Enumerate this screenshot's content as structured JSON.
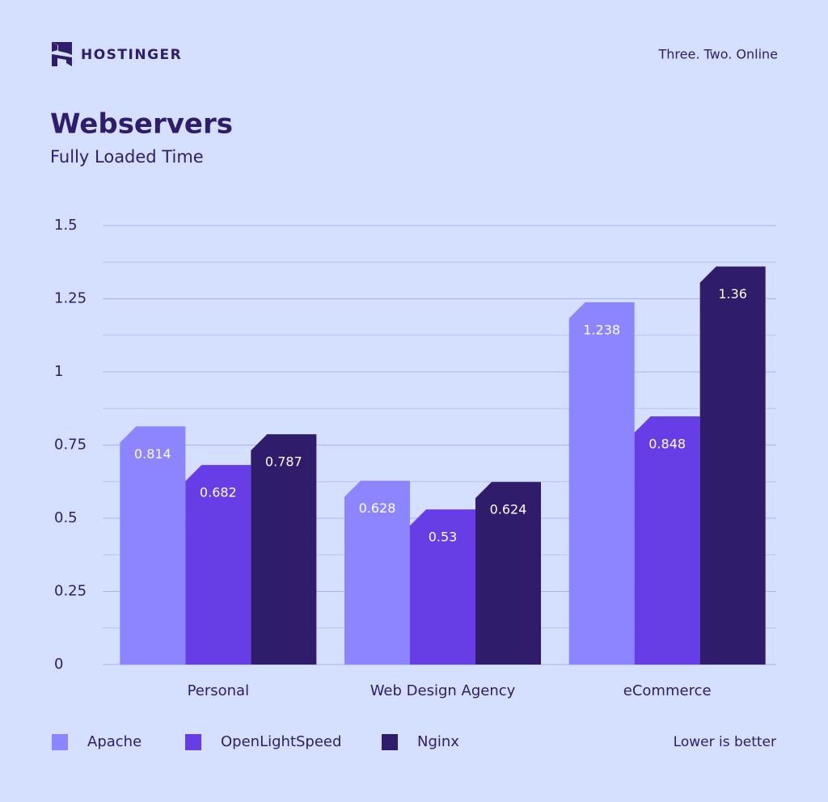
{
  "brand": "HOSTINGER",
  "tagline": "Three. Two. Online",
  "note": "Lower is better",
  "chart_data": {
    "type": "bar",
    "title": "Webservers",
    "subtitle": "Fully Loaded Time",
    "categories": [
      "Personal",
      "Web Design Agency",
      "eCommerce"
    ],
    "series": [
      {
        "name": "Apache",
        "color": "#8c85ff",
        "values": [
          0.814,
          0.628,
          1.238
        ]
      },
      {
        "name": "OpenLightSpeed",
        "color": "#673de6",
        "values": [
          0.682,
          0.53,
          0.848
        ]
      },
      {
        "name": "Nginx",
        "color": "#2f1c6a",
        "values": [
          0.787,
          0.624,
          1.36
        ]
      }
    ],
    "ylim": [
      0,
      1.5
    ],
    "yticks": [
      0,
      0.25,
      0.5,
      0.75,
      1,
      1.25,
      1.5
    ],
    "grid": true
  }
}
